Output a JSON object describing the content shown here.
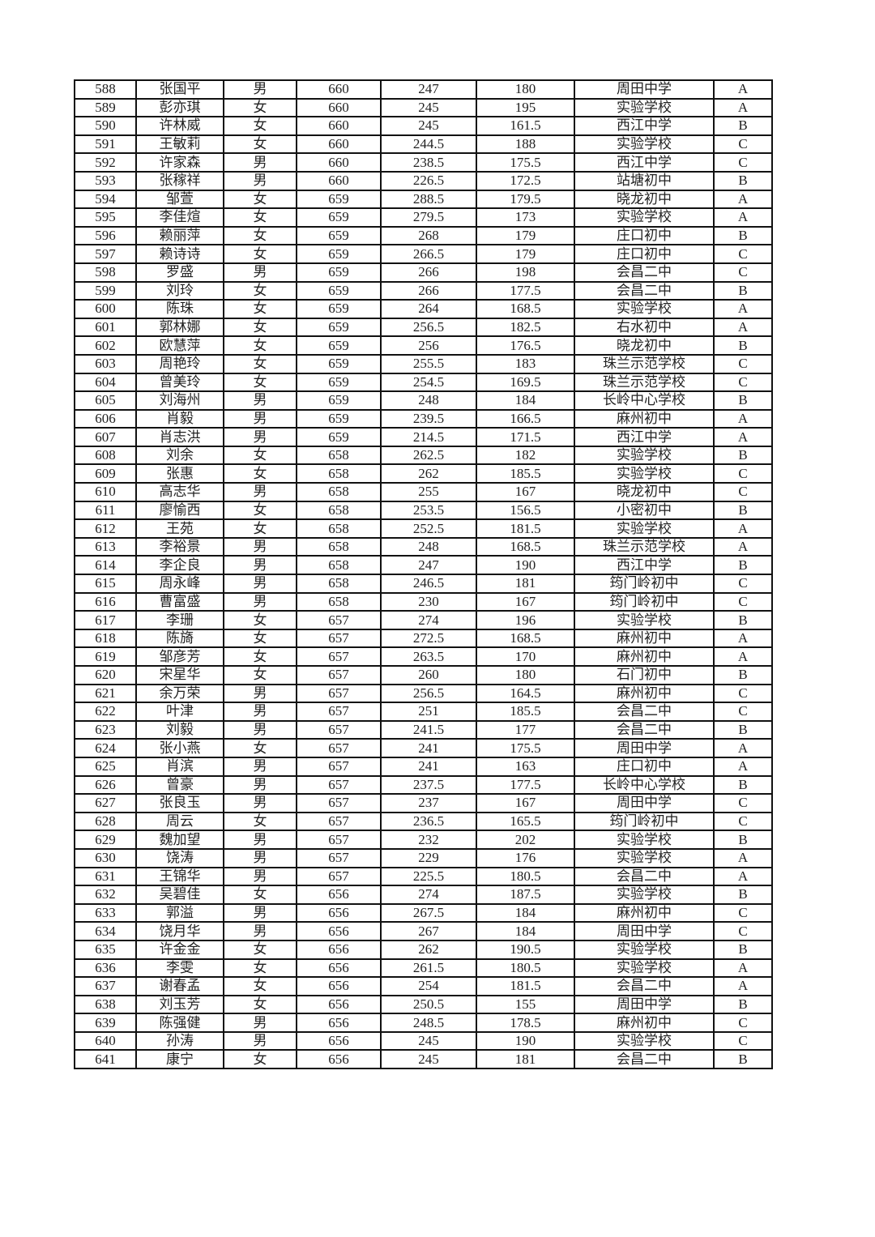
{
  "table": {
    "rows": [
      [
        "588",
        "张国平",
        "男",
        "660",
        "247",
        "180",
        "周田中学",
        "A"
      ],
      [
        "589",
        "彭亦琪",
        "女",
        "660",
        "245",
        "195",
        "实验学校",
        "A"
      ],
      [
        "590",
        "许林威",
        "女",
        "660",
        "245",
        "161.5",
        "西江中学",
        "B"
      ],
      [
        "591",
        "王敏莉",
        "女",
        "660",
        "244.5",
        "188",
        "实验学校",
        "C"
      ],
      [
        "592",
        "许家森",
        "男",
        "660",
        "238.5",
        "175.5",
        "西江中学",
        "C"
      ],
      [
        "593",
        "张稼祥",
        "男",
        "660",
        "226.5",
        "172.5",
        "站塘初中",
        "B"
      ],
      [
        "594",
        "邹萱",
        "女",
        "659",
        "288.5",
        "179.5",
        "晓龙初中",
        "A"
      ],
      [
        "595",
        "李佳煊",
        "女",
        "659",
        "279.5",
        "173",
        "实验学校",
        "A"
      ],
      [
        "596",
        "赖丽萍",
        "女",
        "659",
        "268",
        "179",
        "庄口初中",
        "B"
      ],
      [
        "597",
        "赖诗诗",
        "女",
        "659",
        "266.5",
        "179",
        "庄口初中",
        "C"
      ],
      [
        "598",
        "罗盛",
        "男",
        "659",
        "266",
        "198",
        "会昌二中",
        "C"
      ],
      [
        "599",
        "刘玲",
        "女",
        "659",
        "266",
        "177.5",
        "会昌二中",
        "B"
      ],
      [
        "600",
        "陈珠",
        "女",
        "659",
        "264",
        "168.5",
        "实验学校",
        "A"
      ],
      [
        "601",
        "郭林娜",
        "女",
        "659",
        "256.5",
        "182.5",
        "右水初中",
        "A"
      ],
      [
        "602",
        "欧慧萍",
        "女",
        "659",
        "256",
        "176.5",
        "晓龙初中",
        "B"
      ],
      [
        "603",
        "周艳玲",
        "女",
        "659",
        "255.5",
        "183",
        "珠兰示范学校",
        "C"
      ],
      [
        "604",
        "曾美玲",
        "女",
        "659",
        "254.5",
        "169.5",
        "珠兰示范学校",
        "C"
      ],
      [
        "605",
        "刘海州",
        "男",
        "659",
        "248",
        "184",
        "长岭中心学校",
        "B"
      ],
      [
        "606",
        "肖毅",
        "男",
        "659",
        "239.5",
        "166.5",
        "麻州初中",
        "A"
      ],
      [
        "607",
        "肖志洪",
        "男",
        "659",
        "214.5",
        "171.5",
        "西江中学",
        "A"
      ],
      [
        "608",
        "刘余",
        "女",
        "658",
        "262.5",
        "182",
        "实验学校",
        "B"
      ],
      [
        "609",
        "张惠",
        "女",
        "658",
        "262",
        "185.5",
        "实验学校",
        "C"
      ],
      [
        "610",
        "高志华",
        "男",
        "658",
        "255",
        "167",
        "晓龙初中",
        "C"
      ],
      [
        "611",
        "廖愉西",
        "女",
        "658",
        "253.5",
        "156.5",
        "小密初中",
        "B"
      ],
      [
        "612",
        "王苑",
        "女",
        "658",
        "252.5",
        "181.5",
        "实验学校",
        "A"
      ],
      [
        "613",
        "李裕景",
        "男",
        "658",
        "248",
        "168.5",
        "珠兰示范学校",
        "A"
      ],
      [
        "614",
        "李企良",
        "男",
        "658",
        "247",
        "190",
        "西江中学",
        "B"
      ],
      [
        "615",
        "周永峰",
        "男",
        "658",
        "246.5",
        "181",
        "筠门岭初中",
        "C"
      ],
      [
        "616",
        "曹富盛",
        "男",
        "658",
        "230",
        "167",
        "筠门岭初中",
        "C"
      ],
      [
        "617",
        "李珊",
        "女",
        "657",
        "274",
        "196",
        "实验学校",
        "B"
      ],
      [
        "618",
        "陈旖",
        "女",
        "657",
        "272.5",
        "168.5",
        "麻州初中",
        "A"
      ],
      [
        "619",
        "邹彦芳",
        "女",
        "657",
        "263.5",
        "170",
        "麻州初中",
        "A"
      ],
      [
        "620",
        "宋星华",
        "女",
        "657",
        "260",
        "180",
        "石门初中",
        "B"
      ],
      [
        "621",
        "余万荣",
        "男",
        "657",
        "256.5",
        "164.5",
        "麻州初中",
        "C"
      ],
      [
        "622",
        "叶津",
        "男",
        "657",
        "251",
        "185.5",
        "会昌二中",
        "C"
      ],
      [
        "623",
        "刘毅",
        "男",
        "657",
        "241.5",
        "177",
        "会昌二中",
        "B"
      ],
      [
        "624",
        "张小燕",
        "女",
        "657",
        "241",
        "175.5",
        "周田中学",
        "A"
      ],
      [
        "625",
        "肖滨",
        "男",
        "657",
        "241",
        "163",
        "庄口初中",
        "A"
      ],
      [
        "626",
        "曾豪",
        "男",
        "657",
        "237.5",
        "177.5",
        "长岭中心学校",
        "B"
      ],
      [
        "627",
        "张良玉",
        "男",
        "657",
        "237",
        "167",
        "周田中学",
        "C"
      ],
      [
        "628",
        "周云",
        "女",
        "657",
        "236.5",
        "165.5",
        "筠门岭初中",
        "C"
      ],
      [
        "629",
        "魏加望",
        "男",
        "657",
        "232",
        "202",
        "实验学校",
        "B"
      ],
      [
        "630",
        "饶涛",
        "男",
        "657",
        "229",
        "176",
        "实验学校",
        "A"
      ],
      [
        "631",
        "王锦华",
        "男",
        "657",
        "225.5",
        "180.5",
        "会昌二中",
        "A"
      ],
      [
        "632",
        "吴碧佳",
        "女",
        "656",
        "274",
        "187.5",
        "实验学校",
        "B"
      ],
      [
        "633",
        "郭溢",
        "男",
        "656",
        "267.5",
        "184",
        "麻州初中",
        "C"
      ],
      [
        "634",
        "饶月华",
        "男",
        "656",
        "267",
        "184",
        "周田中学",
        "C"
      ],
      [
        "635",
        "许金金",
        "女",
        "656",
        "262",
        "190.5",
        "实验学校",
        "B"
      ],
      [
        "636",
        "李雯",
        "女",
        "656",
        "261.5",
        "180.5",
        "实验学校",
        "A"
      ],
      [
        "637",
        "谢春孟",
        "女",
        "656",
        "254",
        "181.5",
        "会昌二中",
        "A"
      ],
      [
        "638",
        "刘玉芳",
        "女",
        "656",
        "250.5",
        "155",
        "周田中学",
        "B"
      ],
      [
        "639",
        "陈强健",
        "男",
        "656",
        "248.5",
        "178.5",
        "麻州初中",
        "C"
      ],
      [
        "640",
        "孙涛",
        "男",
        "656",
        "245",
        "190",
        "实验学校",
        "C"
      ],
      [
        "641",
        "康宁",
        "女",
        "656",
        "245",
        "181",
        "会昌二中",
        "B"
      ]
    ]
  }
}
